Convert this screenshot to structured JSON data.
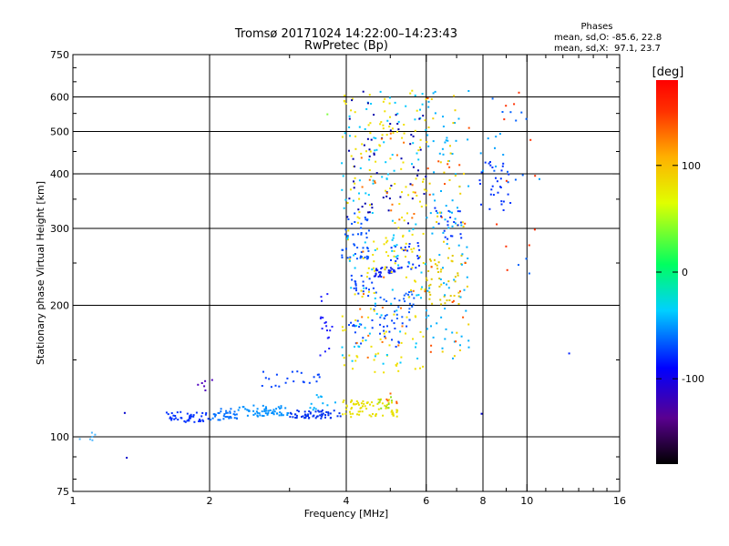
{
  "chart_data": {
    "type": "scatter",
    "title": "Tromsø 20171024 14:22:00–14:23:43",
    "subtitle": "RwPretec (Bp)",
    "xlabel": "Frequency [MHz]",
    "ylabel": "Stationary phase Virtual Height [km]",
    "x_scale": "log",
    "y_scale": "log",
    "xlim": [
      1,
      16
    ],
    "ylim": [
      75,
      750
    ],
    "x_ticks": [
      1,
      2,
      4,
      6,
      8,
      10,
      16
    ],
    "y_ticks": [
      75,
      100,
      200,
      300,
      400,
      500,
      600,
      750
    ],
    "grid_x": [
      2,
      4,
      6,
      8,
      10
    ],
    "grid_y": [
      100,
      200,
      300,
      400,
      500,
      600
    ],
    "grid": true,
    "phase_stats": {
      "heading": "Phases",
      "line_o": "mean, sd,O: -85.6, 22.8",
      "line_x": "mean, sd,X:  97.1, 23.7"
    },
    "colorbar": {
      "label": "[deg]",
      "min": -180,
      "max": 180,
      "ticks": [
        100,
        0,
        -100
      ],
      "colormap": "rainbow"
    },
    "clusters": [
      {
        "x_range": [
          1.02,
          1.12
        ],
        "h_range": [
          98,
          103
        ],
        "count": 6,
        "color": "#4fb8ff"
      },
      {
        "x_range": [
          1.3,
          1.32
        ],
        "h_range": [
          88,
          90
        ],
        "count": 1,
        "color": "#0000cc"
      },
      {
        "x_range": [
          1.3,
          1.35
        ],
        "h_range": [
          112,
          114
        ],
        "count": 1,
        "color": "#0000cc"
      },
      {
        "x_range": [
          1.6,
          2.0
        ],
        "h_range": [
          108,
          114
        ],
        "count": 45,
        "color": "#0030ff"
      },
      {
        "x_range": [
          1.85,
          2.05
        ],
        "h_range": [
          126,
          135
        ],
        "count": 6,
        "color": "#5000c0"
      },
      {
        "x_range": [
          2.0,
          2.3
        ],
        "h_range": [
          109,
          116
        ],
        "count": 35,
        "color": "#0070ff"
      },
      {
        "x_range": [
          2.3,
          3.0
        ],
        "h_range": [
          111,
          118
        ],
        "count": 60,
        "color": "#0090ff"
      },
      {
        "x_range": [
          2.6,
          3.5
        ],
        "h_range": [
          130,
          142
        ],
        "count": 22,
        "color": "#0040ff"
      },
      {
        "x_range": [
          3.0,
          3.9
        ],
        "h_range": [
          110,
          115
        ],
        "count": 60,
        "color": "#0030ee"
      },
      {
        "x_range": [
          3.3,
          3.8
        ],
        "h_range": [
          115,
          125
        ],
        "count": 12,
        "color": "#00b0ff"
      },
      {
        "x_range": [
          3.5,
          3.75
        ],
        "h_range": [
          150,
          215
        ],
        "count": 18,
        "color": "#2020ff"
      },
      {
        "x_range": [
          3.6,
          3.75
        ],
        "h_range": [
          545,
          560
        ],
        "count": 1,
        "color": "#80ff40"
      },
      {
        "x_range": [
          3.9,
          5.2
        ],
        "h_range": [
          111,
          122
        ],
        "count": 75,
        "color": "#e8e000"
      },
      {
        "x_range": [
          4.7,
          5.1
        ],
        "h_range": [
          116,
          124
        ],
        "count": 8,
        "color": "#90e020"
      },
      {
        "x_range": [
          4.9,
          5.2
        ],
        "h_range": [
          118,
          126
        ],
        "count": 5,
        "color": "#ff6000"
      },
      {
        "x_range": [
          3.9,
          4.5
        ],
        "h_range": [
          255,
          330
        ],
        "count": 45,
        "color": "#0050ff"
      },
      {
        "x_range": [
          4.1,
          4.6
        ],
        "h_range": [
          210,
          235
        ],
        "count": 20,
        "color": "#0040ff"
      },
      {
        "x_range": [
          4.6,
          5.3
        ],
        "h_range": [
          232,
          245
        ],
        "count": 35,
        "color": "#1020ee"
      },
      {
        "x_range": [
          5.0,
          5.8
        ],
        "h_range": [
          242,
          280
        ],
        "count": 25,
        "color": "#0030ff"
      },
      {
        "x_range": [
          4.0,
          5.5
        ],
        "h_range": [
          160,
          185
        ],
        "count": 30,
        "color": "#0040ff"
      },
      {
        "x_range": [
          4.6,
          5.8
        ],
        "h_range": [
          185,
          215
        ],
        "count": 35,
        "color": "#1060ff"
      },
      {
        "x_range": [
          3.9,
          6.0
        ],
        "h_range": [
          140,
          620
        ],
        "count": 180,
        "color": "#f0e000"
      },
      {
        "x_range": [
          3.9,
          6.0
        ],
        "h_range": [
          140,
          620
        ],
        "count": 110,
        "color": "#00c8ff"
      },
      {
        "x_range": [
          4.0,
          6.0
        ],
        "h_range": [
          300,
          620
        ],
        "count": 55,
        "color": "#0000aa"
      },
      {
        "x_range": [
          4.2,
          6.0
        ],
        "h_range": [
          150,
          500
        ],
        "count": 35,
        "color": "#ff7000"
      },
      {
        "x_range": [
          6.0,
          7.2
        ],
        "h_range": [
          200,
          260
        ],
        "count": 40,
        "color": "#e0c800"
      },
      {
        "x_range": [
          6.0,
          7.5
        ],
        "h_range": [
          150,
          620
        ],
        "count": 90,
        "color": "#00b0ff"
      },
      {
        "x_range": [
          6.0,
          7.5
        ],
        "h_range": [
          150,
          620
        ],
        "count": 40,
        "color": "#f0d000"
      },
      {
        "x_range": [
          6.0,
          7.5
        ],
        "h_range": [
          150,
          620
        ],
        "count": 20,
        "color": "#ff5000"
      },
      {
        "x_range": [
          6.2,
          7.2
        ],
        "h_range": [
          280,
          340
        ],
        "count": 20,
        "color": "#0030ff"
      },
      {
        "x_range": [
          7.8,
          9.2
        ],
        "h_range": [
          330,
          430
        ],
        "count": 30,
        "color": "#0030ff"
      },
      {
        "x_range": [
          7.9,
          9.0
        ],
        "h_range": [
          400,
          500
        ],
        "count": 8,
        "color": "#00a0ff"
      },
      {
        "x_range": [
          8.4,
          10.5
        ],
        "h_range": [
          220,
          620
        ],
        "count": 14,
        "color": "#0060ff"
      },
      {
        "x_range": [
          8.5,
          10.5
        ],
        "h_range": [
          230,
          620
        ],
        "count": 12,
        "color": "#ff3000"
      },
      {
        "x_range": [
          7.8,
          8.2
        ],
        "h_range": [
          112,
          114
        ],
        "count": 1,
        "color": "#0000cc"
      },
      {
        "x_range": [
          10.6,
          11.0
        ],
        "h_range": [
          380,
          390
        ],
        "count": 1,
        "color": "#00a0ff"
      },
      {
        "x_range": [
          12.2,
          12.6
        ],
        "h_range": [
          155,
          158
        ],
        "count": 1,
        "color": "#0020ff"
      }
    ]
  }
}
